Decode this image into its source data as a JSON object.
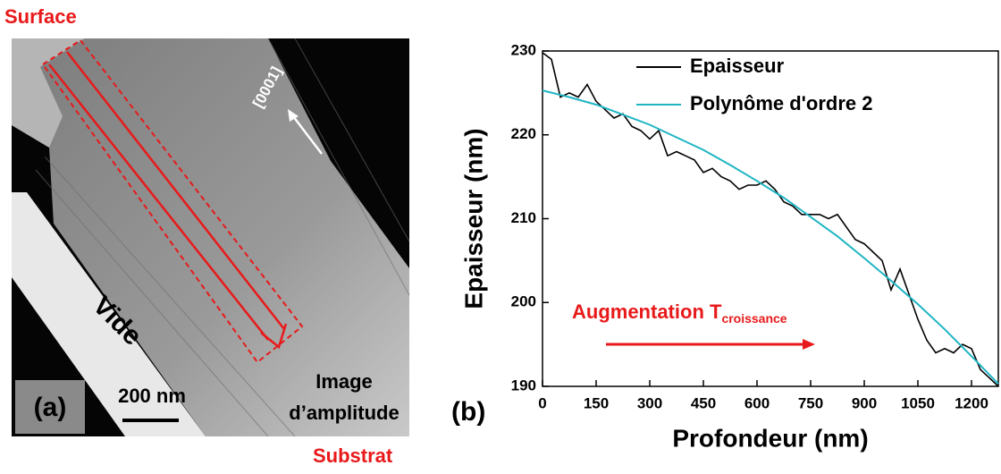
{
  "image_panel": {
    "top_label": "Surface",
    "bottom_label": "Substrat",
    "direction": "[0001]",
    "region": "Vide",
    "panel": "(a)",
    "scale": "200 nm",
    "caption": [
      "Image",
      "d’amplitude"
    ]
  },
  "chart_data": {
    "type": "line",
    "panel": "(b)",
    "xlabel": "Profondeur (nm)",
    "ylabel": "Epaisseur (nm)",
    "annotation": {
      "text": "Augmentation T",
      "subscript": "croissance",
      "color": "#e8191a"
    },
    "xlim": [
      0,
      1275
    ],
    "ylim": [
      190,
      230
    ],
    "xticks": [
      0,
      150,
      300,
      450,
      600,
      750,
      900,
      1050,
      1200
    ],
    "yticks": [
      190,
      200,
      210,
      220,
      230
    ],
    "legend": "top-left",
    "series": [
      {
        "name": "Epaisseur",
        "color": "#000000",
        "x": [
          0,
          25,
          50,
          75,
          100,
          125,
          150,
          175,
          200,
          225,
          250,
          275,
          300,
          325,
          350,
          375,
          400,
          425,
          450,
          475,
          500,
          525,
          550,
          575,
          600,
          625,
          650,
          675,
          700,
          725,
          750,
          775,
          800,
          825,
          850,
          875,
          900,
          925,
          950,
          975,
          1000,
          1025,
          1050,
          1075,
          1100,
          1125,
          1150,
          1175,
          1200,
          1225,
          1250,
          1275
        ],
        "values": [
          229.8,
          229,
          224.5,
          225,
          224.5,
          226,
          224,
          223,
          222,
          222.5,
          221,
          220.5,
          219.5,
          220.5,
          217.5,
          218,
          217.5,
          217,
          215.5,
          216,
          215,
          214.5,
          213.5,
          214,
          214,
          214.5,
          213.5,
          212,
          211.5,
          210.5,
          210.5,
          210.5,
          210,
          210.5,
          209,
          207.5,
          207,
          206,
          205,
          201.5,
          204,
          201,
          198,
          195.5,
          194,
          194.5,
          194,
          195,
          194.5,
          192,
          191,
          190
        ]
      },
      {
        "name": "Polynôme d'ordre 2",
        "color": "#1fb5c4",
        "x": [
          0,
          75,
          150,
          225,
          300,
          375,
          450,
          525,
          600,
          675,
          750,
          825,
          900,
          975,
          1050,
          1125,
          1200,
          1275
        ],
        "values": [
          225.3,
          224.5,
          223.6,
          222.4,
          221.2,
          219.7,
          218.2,
          216.4,
          214.5,
          212.5,
          210.2,
          207.9,
          205.3,
          202.6,
          199.8,
          196.8,
          193.6,
          190.3
        ]
      }
    ]
  }
}
